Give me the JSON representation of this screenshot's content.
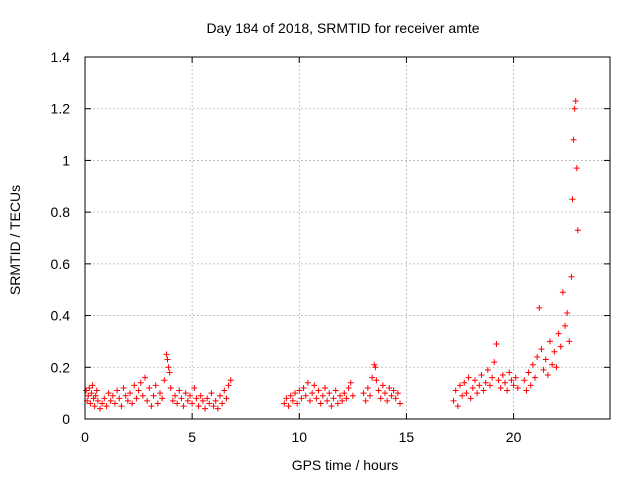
{
  "chart_data": {
    "type": "scatter",
    "title": "Day 184 of 2018, SRMTID for receiver amte",
    "xlabel": "GPS time / hours",
    "ylabel": "SRMTID / TECUs",
    "xlim": [
      0,
      24.5
    ],
    "ylim": [
      0,
      1.4
    ],
    "xticks": [
      0,
      5,
      10,
      15,
      20
    ],
    "yticks": [
      0,
      0.2,
      0.4,
      0.6,
      0.8,
      1,
      1.2,
      1.4
    ],
    "xtick_labels": [
      "0",
      "5",
      "10",
      "15",
      "20"
    ],
    "ytick_labels": [
      "0",
      "0.2",
      "0.4",
      "0.6",
      "0.8",
      "1",
      "1.2",
      "1.4"
    ],
    "grid": true,
    "marker": "plus",
    "color": "#ff0000",
    "series": [
      {
        "name": "SRMTID",
        "points": [
          [
            0.05,
            0.11
          ],
          [
            0.1,
            0.07
          ],
          [
            0.15,
            0.09
          ],
          [
            0.2,
            0.12
          ],
          [
            0.25,
            0.06
          ],
          [
            0.3,
            0.1
          ],
          [
            0.35,
            0.13
          ],
          [
            0.4,
            0.08
          ],
          [
            0.45,
            0.05
          ],
          [
            0.5,
            0.09
          ],
          [
            0.55,
            0.11
          ],
          [
            0.6,
            0.07
          ],
          [
            0.7,
            0.04
          ],
          [
            0.8,
            0.06
          ],
          [
            0.9,
            0.08
          ],
          [
            1.0,
            0.05
          ],
          [
            1.1,
            0.1
          ],
          [
            1.2,
            0.07
          ],
          [
            1.3,
            0.09
          ],
          [
            1.4,
            0.06
          ],
          [
            1.5,
            0.11
          ],
          [
            1.6,
            0.08
          ],
          [
            1.7,
            0.05
          ],
          [
            1.8,
            0.12
          ],
          [
            1.9,
            0.09
          ],
          [
            2.0,
            0.07
          ],
          [
            2.1,
            0.1
          ],
          [
            2.2,
            0.06
          ],
          [
            2.3,
            0.13
          ],
          [
            2.4,
            0.08
          ],
          [
            2.5,
            0.11
          ],
          [
            2.6,
            0.14
          ],
          [
            2.7,
            0.09
          ],
          [
            2.8,
            0.16
          ],
          [
            2.9,
            0.07
          ],
          [
            3.0,
            0.12
          ],
          [
            3.1,
            0.05
          ],
          [
            3.2,
            0.09
          ],
          [
            3.3,
            0.13
          ],
          [
            3.4,
            0.06
          ],
          [
            3.5,
            0.1
          ],
          [
            3.6,
            0.08
          ],
          [
            3.7,
            0.15
          ],
          [
            3.8,
            0.25
          ],
          [
            3.85,
            0.23
          ],
          [
            3.9,
            0.2
          ],
          [
            3.95,
            0.18
          ],
          [
            4.0,
            0.12
          ],
          [
            4.1,
            0.07
          ],
          [
            4.2,
            0.09
          ],
          [
            4.3,
            0.06
          ],
          [
            4.4,
            0.11
          ],
          [
            4.5,
            0.08
          ],
          [
            4.6,
            0.05
          ],
          [
            4.7,
            0.1
          ],
          [
            4.8,
            0.07
          ],
          [
            4.9,
            0.09
          ],
          [
            5.0,
            0.06
          ],
          [
            5.1,
            0.12
          ],
          [
            5.2,
            0.08
          ],
          [
            5.3,
            0.05
          ],
          [
            5.4,
            0.09
          ],
          [
            5.5,
            0.07
          ],
          [
            5.6,
            0.04
          ],
          [
            5.7,
            0.08
          ],
          [
            5.8,
            0.06
          ],
          [
            5.9,
            0.1
          ],
          [
            6.0,
            0.05
          ],
          [
            6.1,
            0.07
          ],
          [
            6.2,
            0.04
          ],
          [
            6.3,
            0.09
          ],
          [
            6.4,
            0.06
          ],
          [
            6.5,
            0.11
          ],
          [
            6.6,
            0.08
          ],
          [
            6.7,
            0.13
          ],
          [
            6.8,
            0.15
          ],
          [
            9.3,
            0.06
          ],
          [
            9.4,
            0.08
          ],
          [
            9.5,
            0.05
          ],
          [
            9.6,
            0.09
          ],
          [
            9.7,
            0.07
          ],
          [
            9.8,
            0.1
          ],
          [
            9.9,
            0.06
          ],
          [
            10.0,
            0.11
          ],
          [
            10.1,
            0.08
          ],
          [
            10.2,
            0.12
          ],
          [
            10.3,
            0.09
          ],
          [
            10.4,
            0.14
          ],
          [
            10.5,
            0.07
          ],
          [
            10.6,
            0.1
          ],
          [
            10.7,
            0.13
          ],
          [
            10.8,
            0.08
          ],
          [
            10.9,
            0.11
          ],
          [
            11.0,
            0.06
          ],
          [
            11.1,
            0.09
          ],
          [
            11.2,
            0.12
          ],
          [
            11.3,
            0.07
          ],
          [
            11.4,
            0.1
          ],
          [
            11.5,
            0.05
          ],
          [
            11.6,
            0.08
          ],
          [
            11.7,
            0.11
          ],
          [
            11.8,
            0.06
          ],
          [
            11.9,
            0.09
          ],
          [
            12.0,
            0.07
          ],
          [
            12.1,
            0.1
          ],
          [
            12.2,
            0.08
          ],
          [
            12.3,
            0.12
          ],
          [
            12.4,
            0.14
          ],
          [
            12.5,
            0.09
          ],
          [
            13.0,
            0.1
          ],
          [
            13.1,
            0.07
          ],
          [
            13.2,
            0.12
          ],
          [
            13.3,
            0.09
          ],
          [
            13.4,
            0.16
          ],
          [
            13.5,
            0.21
          ],
          [
            13.55,
            0.2
          ],
          [
            13.6,
            0.15
          ],
          [
            13.7,
            0.11
          ],
          [
            13.8,
            0.08
          ],
          [
            13.9,
            0.13
          ],
          [
            14.0,
            0.1
          ],
          [
            14.1,
            0.07
          ],
          [
            14.2,
            0.12
          ],
          [
            14.3,
            0.09
          ],
          [
            14.4,
            0.11
          ],
          [
            14.5,
            0.08
          ],
          [
            14.6,
            0.1
          ],
          [
            14.7,
            0.06
          ],
          [
            17.2,
            0.07
          ],
          [
            17.3,
            0.11
          ],
          [
            17.4,
            0.05
          ],
          [
            17.5,
            0.13
          ],
          [
            17.6,
            0.09
          ],
          [
            17.7,
            0.14
          ],
          [
            17.8,
            0.1
          ],
          [
            17.9,
            0.16
          ],
          [
            18.0,
            0.08
          ],
          [
            18.1,
            0.12
          ],
          [
            18.2,
            0.15
          ],
          [
            18.3,
            0.1
          ],
          [
            18.4,
            0.13
          ],
          [
            18.5,
            0.17
          ],
          [
            18.6,
            0.11
          ],
          [
            18.7,
            0.14
          ],
          [
            18.8,
            0.19
          ],
          [
            18.9,
            0.13
          ],
          [
            19.0,
            0.16
          ],
          [
            19.1,
            0.22
          ],
          [
            19.2,
            0.29
          ],
          [
            19.3,
            0.15
          ],
          [
            19.4,
            0.12
          ],
          [
            19.5,
            0.17
          ],
          [
            19.6,
            0.14
          ],
          [
            19.7,
            0.11
          ],
          [
            19.8,
            0.18
          ],
          [
            19.9,
            0.15
          ],
          [
            20.0,
            0.13
          ],
          [
            20.1,
            0.16
          ],
          [
            20.2,
            0.12
          ],
          [
            20.5,
            0.15
          ],
          [
            20.6,
            0.11
          ],
          [
            20.7,
            0.18
          ],
          [
            20.8,
            0.13
          ],
          [
            20.9,
            0.21
          ],
          [
            21.0,
            0.16
          ],
          [
            21.1,
            0.24
          ],
          [
            21.2,
            0.43
          ],
          [
            21.3,
            0.27
          ],
          [
            21.4,
            0.19
          ],
          [
            21.5,
            0.23
          ],
          [
            21.6,
            0.17
          ],
          [
            21.7,
            0.3
          ],
          [
            21.8,
            0.21
          ],
          [
            21.9,
            0.26
          ],
          [
            22.0,
            0.2
          ],
          [
            22.1,
            0.33
          ],
          [
            22.2,
            0.28
          ],
          [
            22.3,
            0.49
          ],
          [
            22.4,
            0.36
          ],
          [
            22.5,
            0.41
          ],
          [
            22.6,
            0.3
          ],
          [
            22.7,
            0.55
          ],
          [
            22.75,
            0.85
          ],
          [
            22.8,
            1.08
          ],
          [
            22.85,
            1.2
          ],
          [
            22.9,
            1.23
          ],
          [
            22.95,
            0.97
          ],
          [
            23.0,
            0.73
          ]
        ]
      }
    ]
  }
}
